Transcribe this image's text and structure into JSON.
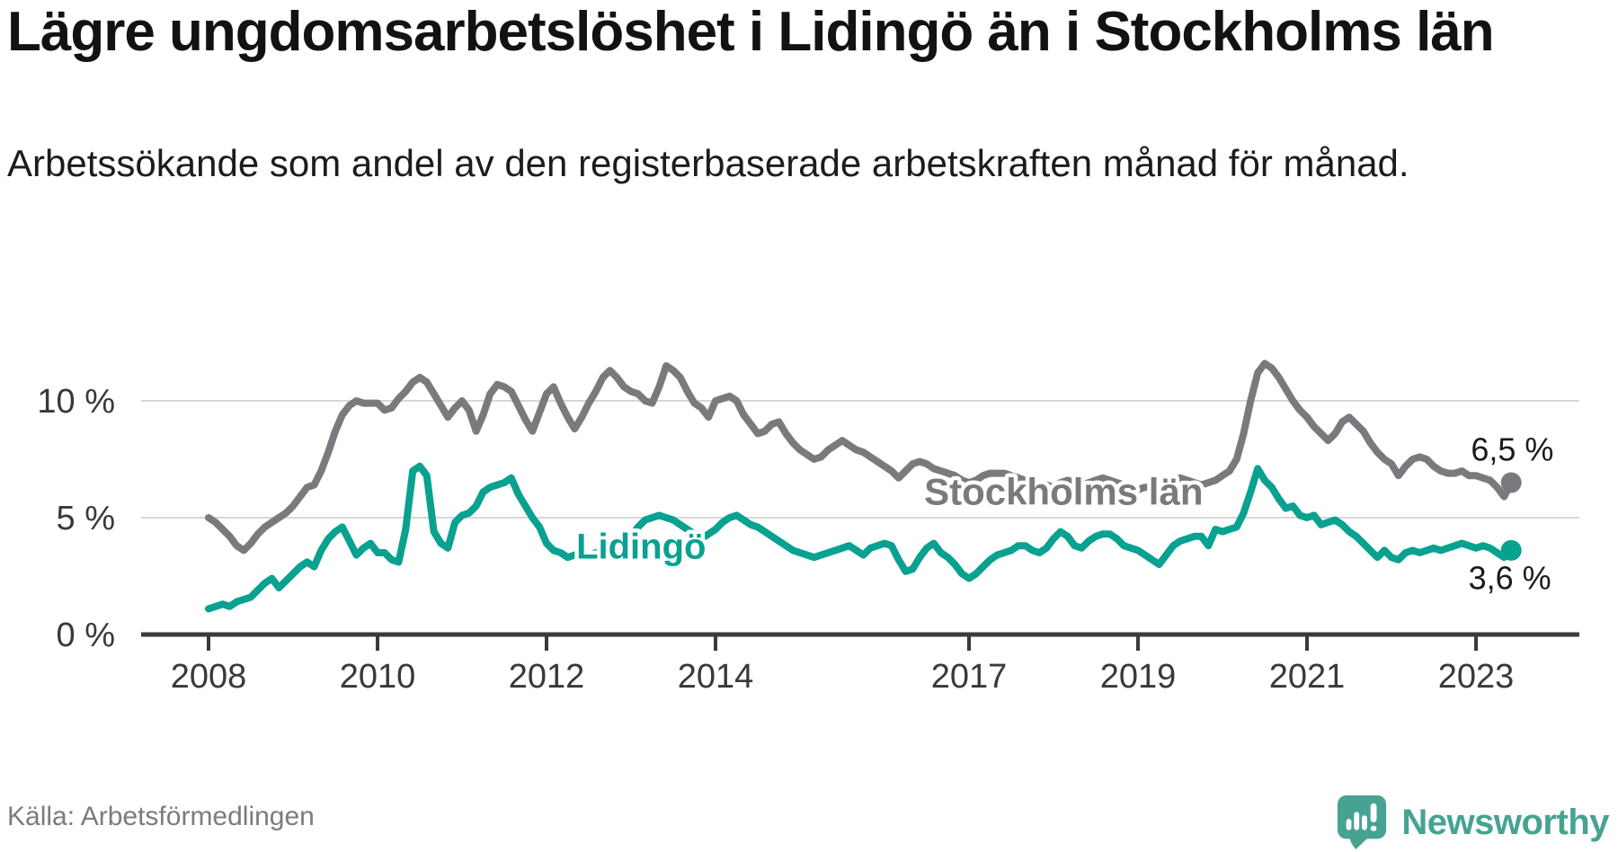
{
  "header": {
    "title": "Lägre ungdomsarbetslöshet i Lidingö än i Stockholms län",
    "subtitle": "Arbetssökande som andel av den registerbaserade arbetskraften månad för månad."
  },
  "footer": {
    "source": "Källa: Arbetsförmedlingen",
    "brand": "Newsworthy"
  },
  "colors": {
    "lidingo": "#09a190",
    "stockholm": "#7a7a7e",
    "brand": "#46a392",
    "grid": "#d8d8d8",
    "axis": "#3a3a3e",
    "tick_label": "#38383d",
    "text_dark": "#1a1a1a"
  },
  "chart_data": {
    "type": "line",
    "title": "Lägre ungdomsarbetslöshet i Lidingö än i Stockholms län",
    "unit": "%",
    "x_start": "2008-01",
    "x_end": "2023-06",
    "freq": "monthly",
    "x_tick_years": [
      2008,
      2010,
      2012,
      2014,
      2017,
      2019,
      2021,
      2023
    ],
    "y_ticks": [
      {
        "value": 0,
        "label": "0 %"
      },
      {
        "value": 5,
        "label": "5 %"
      },
      {
        "value": 10,
        "label": "10 %"
      }
    ],
    "ylim": [
      0,
      12.5
    ],
    "grid": true,
    "series": [
      {
        "name": "Stockholms län",
        "color_key": "stockholm",
        "end_label": "6,5 %",
        "end_value": 6.5,
        "values": [
          5.0,
          4.8,
          4.5,
          4.2,
          3.8,
          3.6,
          3.9,
          4.3,
          4.6,
          4.8,
          5.0,
          5.2,
          5.5,
          5.9,
          6.3,
          6.4,
          7.0,
          7.8,
          8.7,
          9.4,
          9.8,
          10.0,
          9.9,
          9.9,
          9.9,
          9.6,
          9.7,
          10.1,
          10.4,
          10.8,
          11.0,
          10.8,
          10.3,
          9.8,
          9.3,
          9.7,
          10.0,
          9.6,
          8.7,
          9.4,
          10.3,
          10.7,
          10.6,
          10.4,
          9.8,
          9.2,
          8.7,
          9.5,
          10.3,
          10.6,
          9.9,
          9.3,
          8.8,
          9.3,
          9.9,
          10.4,
          11.0,
          11.3,
          11.0,
          10.6,
          10.4,
          10.3,
          10.0,
          9.9,
          10.6,
          11.5,
          11.3,
          11.0,
          10.4,
          9.9,
          9.7,
          9.3,
          10.0,
          10.1,
          10.2,
          10.0,
          9.4,
          9.0,
          8.6,
          8.7,
          9.0,
          9.1,
          8.6,
          8.2,
          7.9,
          7.7,
          7.5,
          7.6,
          7.9,
          8.1,
          8.3,
          8.1,
          7.9,
          7.8,
          7.6,
          7.4,
          7.2,
          7.0,
          6.7,
          7.0,
          7.3,
          7.4,
          7.3,
          7.1,
          7.0,
          6.9,
          6.8,
          6.6,
          6.5,
          6.6,
          6.8,
          6.9,
          6.9,
          6.9,
          6.8,
          6.7,
          6.6,
          6.5,
          6.4,
          6.4,
          6.3,
          6.5,
          6.6,
          6.5,
          6.4,
          6.5,
          6.6,
          6.7,
          6.6,
          6.5,
          6.4,
          6.3,
          6.2,
          6.3,
          6.3,
          6.4,
          6.5,
          6.6,
          6.7,
          6.6,
          6.5,
          6.4,
          6.5,
          6.6,
          6.8,
          7.0,
          7.5,
          8.6,
          10.0,
          11.2,
          11.6,
          11.4,
          11.0,
          10.5,
          10.0,
          9.6,
          9.3,
          8.9,
          8.6,
          8.3,
          8.6,
          9.1,
          9.3,
          9.0,
          8.7,
          8.2,
          7.8,
          7.5,
          7.3,
          6.8,
          7.2,
          7.5,
          7.6,
          7.5,
          7.2,
          7.0,
          6.9,
          6.9,
          7.0,
          6.8,
          6.8,
          6.7,
          6.6,
          6.3,
          5.9,
          6.5
        ]
      },
      {
        "name": "Lidingö",
        "color_key": "lidingo",
        "end_label": "3,6 %",
        "end_value": 3.6,
        "values": [
          1.1,
          1.2,
          1.3,
          1.2,
          1.4,
          1.5,
          1.6,
          1.9,
          2.2,
          2.4,
          2.0,
          2.3,
          2.6,
          2.9,
          3.1,
          2.9,
          3.6,
          4.1,
          4.4,
          4.6,
          4.0,
          3.4,
          3.7,
          3.9,
          3.5,
          3.5,
          3.2,
          3.1,
          4.5,
          7.0,
          7.2,
          6.8,
          4.4,
          3.9,
          3.7,
          4.8,
          5.1,
          5.2,
          5.5,
          6.1,
          6.3,
          6.4,
          6.5,
          6.7,
          6.0,
          5.5,
          5.0,
          4.6,
          3.9,
          3.6,
          3.5,
          3.3,
          3.4,
          3.5,
          3.4,
          3.5,
          3.6,
          3.7,
          3.6,
          3.8,
          4.2,
          4.6,
          4.9,
          5.0,
          5.1,
          5.0,
          4.9,
          4.7,
          4.5,
          4.3,
          4.1,
          4.3,
          4.5,
          4.8,
          5.0,
          5.1,
          4.9,
          4.7,
          4.6,
          4.4,
          4.2,
          4.0,
          3.8,
          3.6,
          3.5,
          3.4,
          3.3,
          3.4,
          3.5,
          3.6,
          3.7,
          3.8,
          3.6,
          3.4,
          3.7,
          3.8,
          3.9,
          3.8,
          3.2,
          2.7,
          2.8,
          3.3,
          3.7,
          3.9,
          3.5,
          3.3,
          3.0,
          2.6,
          2.4,
          2.6,
          2.9,
          3.2,
          3.4,
          3.5,
          3.6,
          3.8,
          3.8,
          3.6,
          3.5,
          3.7,
          4.1,
          4.4,
          4.2,
          3.8,
          3.7,
          4.0,
          4.2,
          4.3,
          4.3,
          4.1,
          3.8,
          3.7,
          3.6,
          3.4,
          3.2,
          3.0,
          3.4,
          3.8,
          4.0,
          4.1,
          4.2,
          4.2,
          3.8,
          4.5,
          4.4,
          4.5,
          4.6,
          5.2,
          6.1,
          7.1,
          6.6,
          6.3,
          5.8,
          5.4,
          5.5,
          5.1,
          5.0,
          5.1,
          4.7,
          4.8,
          4.9,
          4.7,
          4.4,
          4.2,
          3.9,
          3.6,
          3.3,
          3.6,
          3.3,
          3.2,
          3.5,
          3.6,
          3.5,
          3.6,
          3.7,
          3.6,
          3.7,
          3.8,
          3.9,
          3.8,
          3.7,
          3.8,
          3.7,
          3.5,
          3.3,
          3.6
        ]
      }
    ],
    "annotations": [
      {
        "text": "Stockholms län",
        "year": 2018.12,
        "value": 5.55,
        "size": 42,
        "weight": "bold",
        "color_key": "stockholm",
        "halo": 9
      },
      {
        "text": "Lidingö",
        "year": 2013.12,
        "value": 3.25,
        "size": 40,
        "weight": "bold",
        "color_key": "lidingo",
        "halo": 9
      },
      {
        "text": "6,5 %",
        "year": 2023.43,
        "value": 7.45,
        "size": 36,
        "weight": "normal",
        "color_key": "text_dark",
        "halo": 6
      },
      {
        "text": "3,6 %",
        "year": 2023.4,
        "value": 1.95,
        "size": 36,
        "weight": "normal",
        "color_key": "text_dark",
        "halo": 6
      }
    ],
    "legend_position": "inline-labels"
  }
}
